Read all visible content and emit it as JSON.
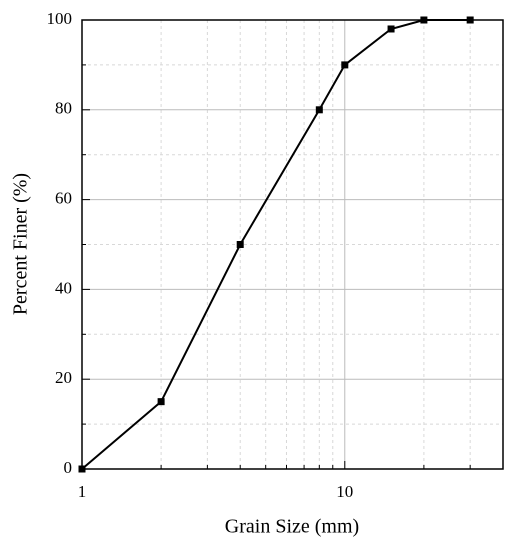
{
  "chart_data": {
    "type": "line",
    "xlabel": "Grain Size (mm)",
    "ylabel": "Percent Finer (%)",
    "x": [
      1,
      2,
      4,
      8,
      10,
      15,
      20,
      30
    ],
    "series": [
      {
        "name": "Percent Finer",
        "color": "#000000",
        "values": [
          0,
          15,
          50,
          80,
          90,
          98,
          100,
          100
        ]
      }
    ],
    "xscale": "log",
    "xlim": [
      1,
      40
    ],
    "xticks": [
      1,
      10
    ],
    "x_minor_ticks": [
      2,
      3,
      4,
      5,
      6,
      7,
      8,
      9,
      20,
      30,
      40
    ],
    "ylim": [
      0,
      100
    ],
    "yticks": [
      0,
      20,
      40,
      60,
      80,
      100
    ],
    "y_minor_ticks": [
      10,
      30,
      50,
      70,
      90
    ],
    "grid": true,
    "legend": false
  }
}
